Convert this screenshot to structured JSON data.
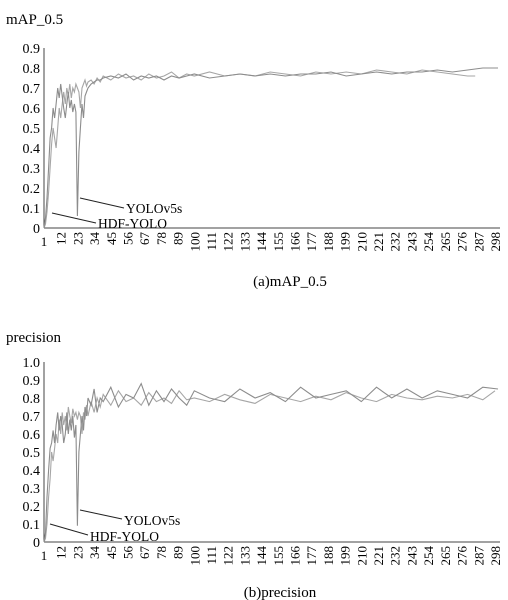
{
  "chart_data": [
    {
      "type": "line",
      "title": "mAP_0.5",
      "caption": "(a)mAP_0.5",
      "ylim": [
        0,
        0.9
      ],
      "y_ticks": [
        "0",
        "0.1",
        "0.2",
        "0.3",
        "0.4",
        "0.5",
        "0.6",
        "0.7",
        "0.8",
        "0.9"
      ],
      "x_ticks": [
        "1",
        "12",
        "23",
        "34",
        "45",
        "56",
        "67",
        "78",
        "89",
        "100",
        "111",
        "122",
        "133",
        "144",
        "155",
        "166",
        "177",
        "188",
        "199",
        "210",
        "221",
        "232",
        "243",
        "254",
        "265",
        "276",
        "287",
        "298"
      ],
      "xlim": [
        1,
        300
      ],
      "grid": false,
      "annotations": [
        "YOLOv5s",
        "HDF-YOLO"
      ],
      "series": [
        {
          "name": "YOLOv5s",
          "x": [
            1,
            2,
            3,
            4,
            5,
            6,
            7,
            8,
            9,
            10,
            11,
            12,
            13,
            14,
            15,
            16,
            17,
            18,
            19,
            20,
            21,
            22,
            23,
            24,
            25,
            26,
            27,
            28,
            29,
            30,
            32,
            34,
            36,
            38,
            40,
            45,
            50,
            55,
            60,
            65,
            70,
            75,
            80,
            85,
            90,
            95,
            100,
            110,
            120,
            130,
            140,
            150,
            160,
            170,
            180,
            190,
            200,
            210,
            220,
            230,
            240,
            250,
            260,
            270,
            280,
            290,
            300
          ],
          "y": [
            0.0,
            0.05,
            0.15,
            0.3,
            0.45,
            0.5,
            0.6,
            0.55,
            0.62,
            0.7,
            0.65,
            0.72,
            0.66,
            0.6,
            0.55,
            0.62,
            0.68,
            0.6,
            0.64,
            0.58,
            0.62,
            0.58,
            0.06,
            0.38,
            0.5,
            0.62,
            0.55,
            0.66,
            0.68,
            0.7,
            0.72,
            0.73,
            0.74,
            0.74,
            0.75,
            0.76,
            0.75,
            0.77,
            0.74,
            0.76,
            0.75,
            0.76,
            0.74,
            0.76,
            0.75,
            0.76,
            0.77,
            0.75,
            0.76,
            0.77,
            0.76,
            0.77,
            0.76,
            0.77,
            0.77,
            0.78,
            0.76,
            0.77,
            0.78,
            0.77,
            0.78,
            0.78,
            0.79,
            0.78,
            0.79,
            0.8,
            0.8
          ]
        },
        {
          "name": "HDF-YOLO",
          "x": [
            1,
            2,
            3,
            4,
            5,
            6,
            7,
            8,
            9,
            10,
            11,
            12,
            13,
            14,
            15,
            16,
            17,
            18,
            19,
            20,
            21,
            22,
            23,
            24,
            25,
            26,
            27,
            28,
            29,
            30,
            32,
            34,
            36,
            38,
            40,
            45,
            50,
            55,
            60,
            65,
            70,
            75,
            80,
            85,
            90,
            95,
            100,
            110,
            120,
            130,
            140,
            150,
            160,
            170,
            180,
            190,
            200,
            210,
            220,
            230,
            240,
            250,
            260,
            270,
            280,
            285
          ],
          "y": [
            0.0,
            0.02,
            0.08,
            0.18,
            0.3,
            0.42,
            0.5,
            0.45,
            0.4,
            0.5,
            0.6,
            0.55,
            0.62,
            0.68,
            0.62,
            0.7,
            0.66,
            0.72,
            0.65,
            0.7,
            0.68,
            0.72,
            0.7,
            0.68,
            0.6,
            0.7,
            0.72,
            0.74,
            0.71,
            0.73,
            0.74,
            0.72,
            0.75,
            0.73,
            0.76,
            0.74,
            0.77,
            0.75,
            0.76,
            0.74,
            0.77,
            0.75,
            0.76,
            0.78,
            0.75,
            0.77,
            0.76,
            0.78,
            0.76,
            0.77,
            0.76,
            0.78,
            0.77,
            0.76,
            0.78,
            0.77,
            0.78,
            0.77,
            0.79,
            0.78,
            0.77,
            0.79,
            0.78,
            0.77,
            0.76,
            0.76
          ]
        }
      ]
    },
    {
      "type": "line",
      "title": "precision",
      "caption": "(b)precision",
      "ylim": [
        0,
        1.0
      ],
      "y_ticks": [
        "0",
        "0.1",
        "0.2",
        "0.3",
        "0.4",
        "0.5",
        "0.6",
        "0.7",
        "0.8",
        "0.9",
        "1.0"
      ],
      "x_ticks": [
        "1",
        "12",
        "23",
        "34",
        "45",
        "56",
        "67",
        "78",
        "89",
        "100",
        "111",
        "122",
        "133",
        "144",
        "155",
        "166",
        "177",
        "188",
        "199",
        "210",
        "221",
        "232",
        "243",
        "254",
        "265",
        "276",
        "287",
        "298"
      ],
      "xlim": [
        1,
        300
      ],
      "grid": false,
      "annotations": [
        "YOLOv5s",
        "HDF-YOLO"
      ],
      "series": [
        {
          "name": "YOLOv5s",
          "x": [
            1,
            2,
            3,
            4,
            5,
            6,
            7,
            8,
            9,
            10,
            11,
            12,
            13,
            14,
            15,
            16,
            17,
            18,
            19,
            20,
            21,
            22,
            23,
            24,
            25,
            26,
            27,
            28,
            29,
            30,
            32,
            34,
            36,
            38,
            40,
            45,
            50,
            55,
            60,
            65,
            70,
            75,
            80,
            85,
            90,
            95,
            100,
            110,
            120,
            130,
            140,
            150,
            160,
            170,
            180,
            190,
            200,
            210,
            220,
            230,
            240,
            250,
            260,
            270,
            280,
            290,
            300
          ],
          "y": [
            0.0,
            0.05,
            0.25,
            0.4,
            0.52,
            0.55,
            0.62,
            0.55,
            0.65,
            0.72,
            0.62,
            0.7,
            0.65,
            0.55,
            0.6,
            0.72,
            0.6,
            0.68,
            0.62,
            0.7,
            0.58,
            0.65,
            0.09,
            0.5,
            0.6,
            0.7,
            0.62,
            0.75,
            0.7,
            0.8,
            0.76,
            0.85,
            0.72,
            0.8,
            0.78,
            0.86,
            0.75,
            0.82,
            0.8,
            0.88,
            0.76,
            0.84,
            0.78,
            0.85,
            0.8,
            0.76,
            0.84,
            0.8,
            0.78,
            0.85,
            0.8,
            0.83,
            0.78,
            0.86,
            0.8,
            0.82,
            0.84,
            0.78,
            0.86,
            0.8,
            0.85,
            0.8,
            0.84,
            0.82,
            0.8,
            0.86,
            0.85
          ]
        },
        {
          "name": "HDF-YOLO",
          "x": [
            1,
            2,
            3,
            4,
            5,
            6,
            7,
            8,
            9,
            10,
            11,
            12,
            13,
            14,
            15,
            16,
            17,
            18,
            19,
            20,
            21,
            22,
            23,
            24,
            25,
            26,
            27,
            28,
            29,
            30,
            32,
            34,
            36,
            38,
            40,
            45,
            50,
            55,
            60,
            65,
            70,
            75,
            80,
            85,
            90,
            95,
            100,
            110,
            120,
            130,
            140,
            150,
            160,
            170,
            180,
            190,
            200,
            210,
            220,
            230,
            240,
            250,
            260,
            270,
            280,
            290,
            298
          ],
          "y": [
            0.0,
            0.02,
            0.1,
            0.25,
            0.35,
            0.5,
            0.45,
            0.52,
            0.6,
            0.55,
            0.68,
            0.6,
            0.72,
            0.65,
            0.7,
            0.62,
            0.75,
            0.7,
            0.66,
            0.74,
            0.7,
            0.72,
            0.68,
            0.72,
            0.7,
            0.6,
            0.72,
            0.68,
            0.76,
            0.7,
            0.78,
            0.72,
            0.8,
            0.75,
            0.82,
            0.76,
            0.84,
            0.78,
            0.8,
            0.76,
            0.83,
            0.78,
            0.8,
            0.77,
            0.84,
            0.79,
            0.8,
            0.78,
            0.82,
            0.79,
            0.77,
            0.82,
            0.8,
            0.78,
            0.81,
            0.79,
            0.83,
            0.8,
            0.78,
            0.82,
            0.8,
            0.79,
            0.81,
            0.8,
            0.82,
            0.79,
            0.84
          ]
        }
      ]
    }
  ]
}
